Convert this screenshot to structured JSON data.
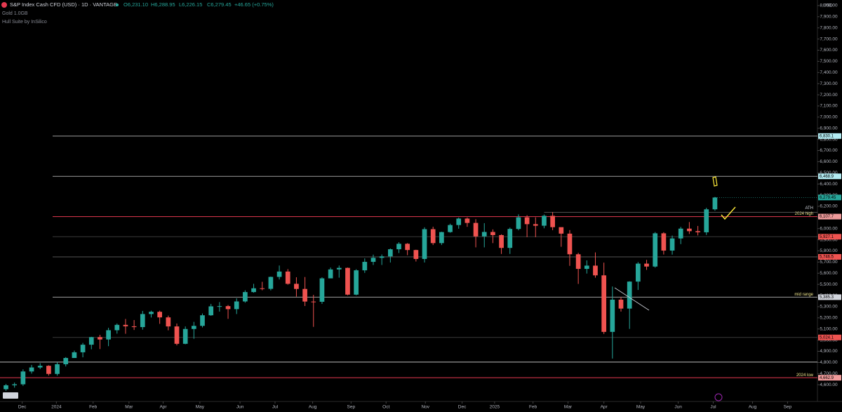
{
  "header": {
    "symbol": "S&P Index Cash CFD (USD) · 1D · VANTAGE",
    "open": "O6,231.10",
    "high": "H6,288.95",
    "low": "L6,226.15",
    "close": "C6,279.45",
    "change": "+46.65 (+0.75%)",
    "indicator_1": "Gold 1.0GB",
    "indicator_2": "Hull Suite by InSilico"
  },
  "chart_data": {
    "type": "candlestick",
    "currency": "USD",
    "up_color": "#26a69a",
    "down_color": "#ef5350",
    "xlim": [
      -0.7,
      95
    ],
    "ylim": [
      4450,
      8050
    ],
    "xticks": [
      {
        "value": 1.9,
        "label": "Dec"
      },
      {
        "value": 5.9,
        "label": "2024"
      },
      {
        "value": 10.2,
        "label": "Feb"
      },
      {
        "value": 14.4,
        "label": "Mar"
      },
      {
        "value": 18.4,
        "label": "Apr"
      },
      {
        "value": 22.7,
        "label": "May"
      },
      {
        "value": 27.4,
        "label": "Jun"
      },
      {
        "value": 31.5,
        "label": "Jul"
      },
      {
        "value": 35.9,
        "label": "Aug"
      },
      {
        "value": 40.4,
        "label": "Sep"
      },
      {
        "value": 44.5,
        "label": "Oct"
      },
      {
        "value": 49.1,
        "label": "Nov"
      },
      {
        "value": 53.4,
        "label": "Dec"
      },
      {
        "value": 57.2,
        "label": "2025"
      },
      {
        "value": 61.7,
        "label": "Feb"
      },
      {
        "value": 65.8,
        "label": "Mar"
      },
      {
        "value": 70,
        "label": "Apr"
      },
      {
        "value": 74.3,
        "label": "May"
      },
      {
        "value": 78.7,
        "label": "Jun"
      },
      {
        "value": 82.8,
        "label": "Jul"
      },
      {
        "value": 87.4,
        "label": "Aug"
      },
      {
        "value": 91.5,
        "label": "Sep"
      }
    ],
    "yticks": [
      {
        "value": 4600,
        "label": "4,600.00"
      },
      {
        "value": 4700,
        "label": "4,700.00"
      },
      {
        "value": 4800,
        "label": "4,800.00"
      },
      {
        "value": 4900,
        "label": "4,900.00"
      },
      {
        "value": 5000,
        "label": "5,000.00"
      },
      {
        "value": 5100,
        "label": "5,100.00"
      },
      {
        "value": 5200,
        "label": "5,200.00"
      },
      {
        "value": 5300,
        "label": "5,300.00"
      },
      {
        "value": 5400,
        "label": "5,400.00"
      },
      {
        "value": 5500,
        "label": "5,500.00"
      },
      {
        "value": 5600,
        "label": "5,600.00"
      },
      {
        "value": 5700,
        "label": "5,700.00"
      },
      {
        "value": 5800,
        "label": "5,800.00"
      },
      {
        "value": 5900,
        "label": "5,900.00"
      },
      {
        "value": 6000,
        "label": "6,000.00"
      },
      {
        "value": 6100,
        "label": "6,100.00"
      },
      {
        "value": 6200,
        "label": "6,200.00"
      },
      {
        "value": 6300,
        "label": "6,300.00"
      },
      {
        "value": 6400,
        "label": "6,400.00"
      },
      {
        "value": 6500,
        "label": "6,500.00"
      },
      {
        "value": 6600,
        "label": "6,600.00"
      },
      {
        "value": 6700,
        "label": "6,700.00"
      },
      {
        "value": 6800,
        "label": "6,800.00"
      },
      {
        "value": 6900,
        "label": "6,900.00"
      },
      {
        "value": 7000,
        "label": "7,000.00"
      },
      {
        "value": 7100,
        "label": "7,100.00"
      },
      {
        "value": 7200,
        "label": "7,200.00"
      },
      {
        "value": 7300,
        "label": "7,300.00"
      },
      {
        "value": 7400,
        "label": "7,400.00"
      },
      {
        "value": 7500,
        "label": "7,500.00"
      },
      {
        "value": 7600,
        "label": "7,600.00"
      },
      {
        "value": 7700,
        "label": "7,700.00"
      },
      {
        "value": 7800,
        "label": "7,800.00"
      },
      {
        "value": 7900,
        "label": "7,900.00"
      },
      {
        "value": 8000,
        "label": "8,000.00"
      }
    ],
    "open": [
      4560,
      4595,
      4604,
      4719,
      4755,
      4770,
      4697,
      4784,
      4840,
      4891,
      4959,
      5027,
      5006,
      5089,
      5137,
      5124,
      5117,
      5234,
      5254,
      5204,
      5123,
      4967,
      5100,
      5128,
      5223,
      5303,
      5305,
      5278,
      5347,
      5431,
      5465,
      5460,
      5567,
      5615,
      5505,
      5459,
      5346,
      5344,
      5554,
      5634,
      5648,
      5408,
      5626,
      5702,
      5738,
      5751,
      5815,
      5864,
      5808,
      5728,
      5995,
      5870,
      5969,
      6032,
      6090,
      6051,
      5930,
      5970,
      5942,
      5827,
      5997,
      6101,
      6040,
      6026,
      6115,
      6013,
      5955,
      5770,
      5639,
      5668,
      5581,
      5074,
      5363,
      5283,
      5525,
      5686,
      5660,
      5958,
      5803,
      5912,
      6000,
      5977,
      5967,
      6173
    ],
    "high": [
      4607,
      4620,
      4738,
      4778,
      4793,
      4775,
      4802,
      4848,
      4906,
      4975,
      5030,
      5048,
      5111,
      5149,
      5190,
      5180,
      5262,
      5264,
      5264,
      5220,
      5149,
      5123,
      5164,
      5239,
      5325,
      5341,
      5315,
      5375,
      5447,
      5505,
      5523,
      5570,
      5669,
      5637,
      5564,
      5566,
      5406,
      5563,
      5651,
      5669,
      5651,
      5636,
      5733,
      5767,
      5768,
      5822,
      5878,
      5870,
      5811,
      6012,
      6017,
      5972,
      6044,
      6099,
      6100,
      6085,
      6049,
      5993,
      5949,
      6009,
      6128,
      6120,
      6101,
      6127,
      6147,
      6009,
      5987,
      5783,
      5715,
      5787,
      5695,
      5481,
      5386,
      5528,
      5700,
      5720,
      5969,
      5968,
      5938,
      6016,
      6059,
      6024,
      6187,
      6284
    ],
    "low": [
      4546,
      4574,
      4590,
      4700,
      4740,
      4682,
      4682,
      4764,
      4842,
      4846,
      4918,
      4920,
      4946,
      5058,
      5057,
      5091,
      5094,
      5203,
      5146,
      5088,
      4953,
      4963,
      5012,
      5114,
      5218,
      5256,
      5191,
      5234,
      5336,
      5425,
      5447,
      5446,
      5544,
      5497,
      5390,
      5306,
      5119,
      5325,
      5560,
      5560,
      5402,
      5402,
      5603,
      5674,
      5674,
      5696,
      5781,
      5762,
      5705,
      5696,
      5853,
      5853,
      5963,
      5999,
      6016,
      5832,
      5832,
      5870,
      5773,
      5773,
      5985,
      5923,
      5923,
      6003,
      5986,
      5837,
      5666,
      5504,
      5597,
      5560,
      5055,
      4835,
      5256,
      5101,
      5450,
      5630,
      5650,
      5768,
      5767,
      5861,
      5952,
      5939,
      5943,
      6160
    ],
    "close": [
      4595,
      4604,
      4719,
      4755,
      4770,
      4697,
      4784,
      4840,
      4891,
      4959,
      5027,
      5006,
      5089,
      5137,
      5124,
      5117,
      5234,
      5254,
      5204,
      5123,
      4967,
      5100,
      5128,
      5223,
      5303,
      5305,
      5278,
      5347,
      5431,
      5465,
      5460,
      5567,
      5615,
      5505,
      5459,
      5346,
      5344,
      5554,
      5634,
      5648,
      5408,
      5626,
      5702,
      5738,
      5751,
      5815,
      5864,
      5808,
      5728,
      5995,
      5870,
      5969,
      6032,
      6090,
      6051,
      5930,
      5970,
      5942,
      5827,
      5997,
      6101,
      6040,
      6026,
      6115,
      6013,
      5955,
      5770,
      5639,
      5668,
      5581,
      5074,
      5363,
      5283,
      5525,
      5686,
      5660,
      5958,
      5803,
      5912,
      6000,
      5977,
      5967,
      6173,
      6279
    ],
    "levels": [
      {
        "value": 6830.1,
        "label": "6,830.1",
        "color": "#b2ebf2",
        "line_color": "#9e9e9e"
      },
      {
        "value": 6468.9,
        "label": "6,468.9",
        "color": "#b2ebf2",
        "line_color": "#9e9e9e"
      },
      {
        "value": 6107.7,
        "label": "6,107.7",
        "color": "#ef9a9a",
        "line_color": "#e53950",
        "note": "2024 high"
      },
      {
        "value": 5927.1,
        "label": "5,927.1",
        "color": "#ef5350",
        "line_color": "#3a3a3a"
      },
      {
        "value": 5746.5,
        "label": "5,746.5",
        "color": "#ef5350",
        "line_color": "#555555"
      },
      {
        "value": 5385.3,
        "label": "5,385.3",
        "color": "#d1d4dc",
        "line_color": "#9e9e9e",
        "note": "mid range"
      },
      {
        "value": 5024.1,
        "label": "5,024.1",
        "color": "#ef5350",
        "line_color": "#3a3a3a"
      },
      {
        "value": 4803,
        "line_color": "#bdbdbd",
        "extend": "left"
      },
      {
        "value": 4662.9,
        "label": "4,662.9",
        "color": "#ef9a9a",
        "line_color": "#e53950",
        "note": "2024 low",
        "extend": "left"
      }
    ],
    "ath": {
      "value": 6147,
      "note": "ATH"
    },
    "last_price": {
      "value": 6279.45,
      "label": "6,279.45",
      "color": "#26a69a"
    }
  }
}
